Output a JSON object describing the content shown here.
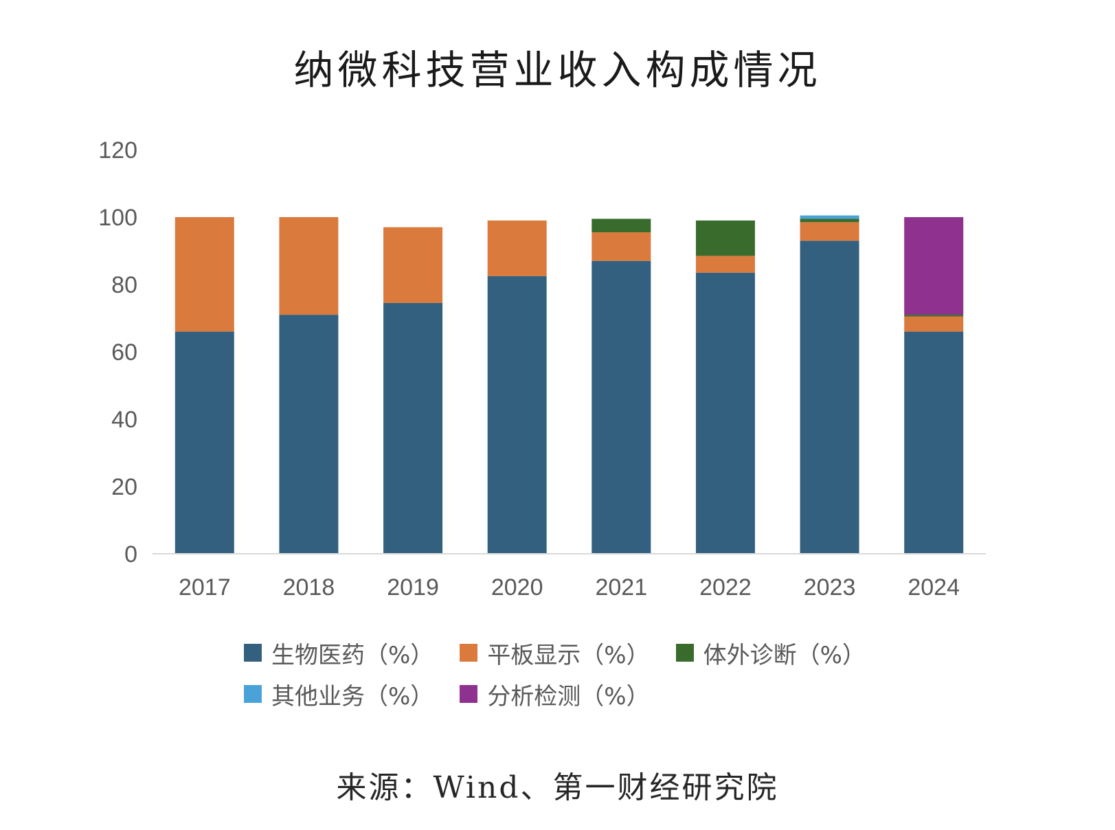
{
  "chart_data": {
    "type": "bar",
    "stacked": true,
    "title": "纳微科技营业收入构成情况",
    "categories": [
      "2017",
      "2018",
      "2019",
      "2020",
      "2021",
      "2022",
      "2023",
      "2024"
    ],
    "ylim": [
      0,
      120
    ],
    "yticks": [
      "0",
      "20",
      "40",
      "60",
      "80",
      "100",
      "120"
    ],
    "grid": false,
    "legend_position": "bottom",
    "series": [
      {
        "name": "生物医药（%）",
        "color": "#34607f",
        "values": [
          66,
          71,
          74.5,
          82.5,
          87,
          83.5,
          93,
          66
        ]
      },
      {
        "name": "平板显示（%）",
        "color": "#da7a3c",
        "values": [
          34,
          29,
          22.5,
          16.5,
          8.5,
          5,
          5.5,
          4.5
        ]
      },
      {
        "name": "体外诊断（%）",
        "color": "#386b2c",
        "values": [
          0,
          0,
          0,
          0,
          4,
          10.5,
          1,
          0.5
        ]
      },
      {
        "name": "其他业务（%）",
        "color": "#4aa3d8",
        "values": [
          0,
          0,
          0,
          0,
          0,
          0,
          1,
          0
        ]
      },
      {
        "name": "分析检测（%）",
        "color": "#8e318f",
        "values": [
          0,
          0,
          0,
          0,
          0,
          0,
          0,
          29
        ]
      }
    ]
  },
  "source": "来源：Wind、第一财经研究院"
}
